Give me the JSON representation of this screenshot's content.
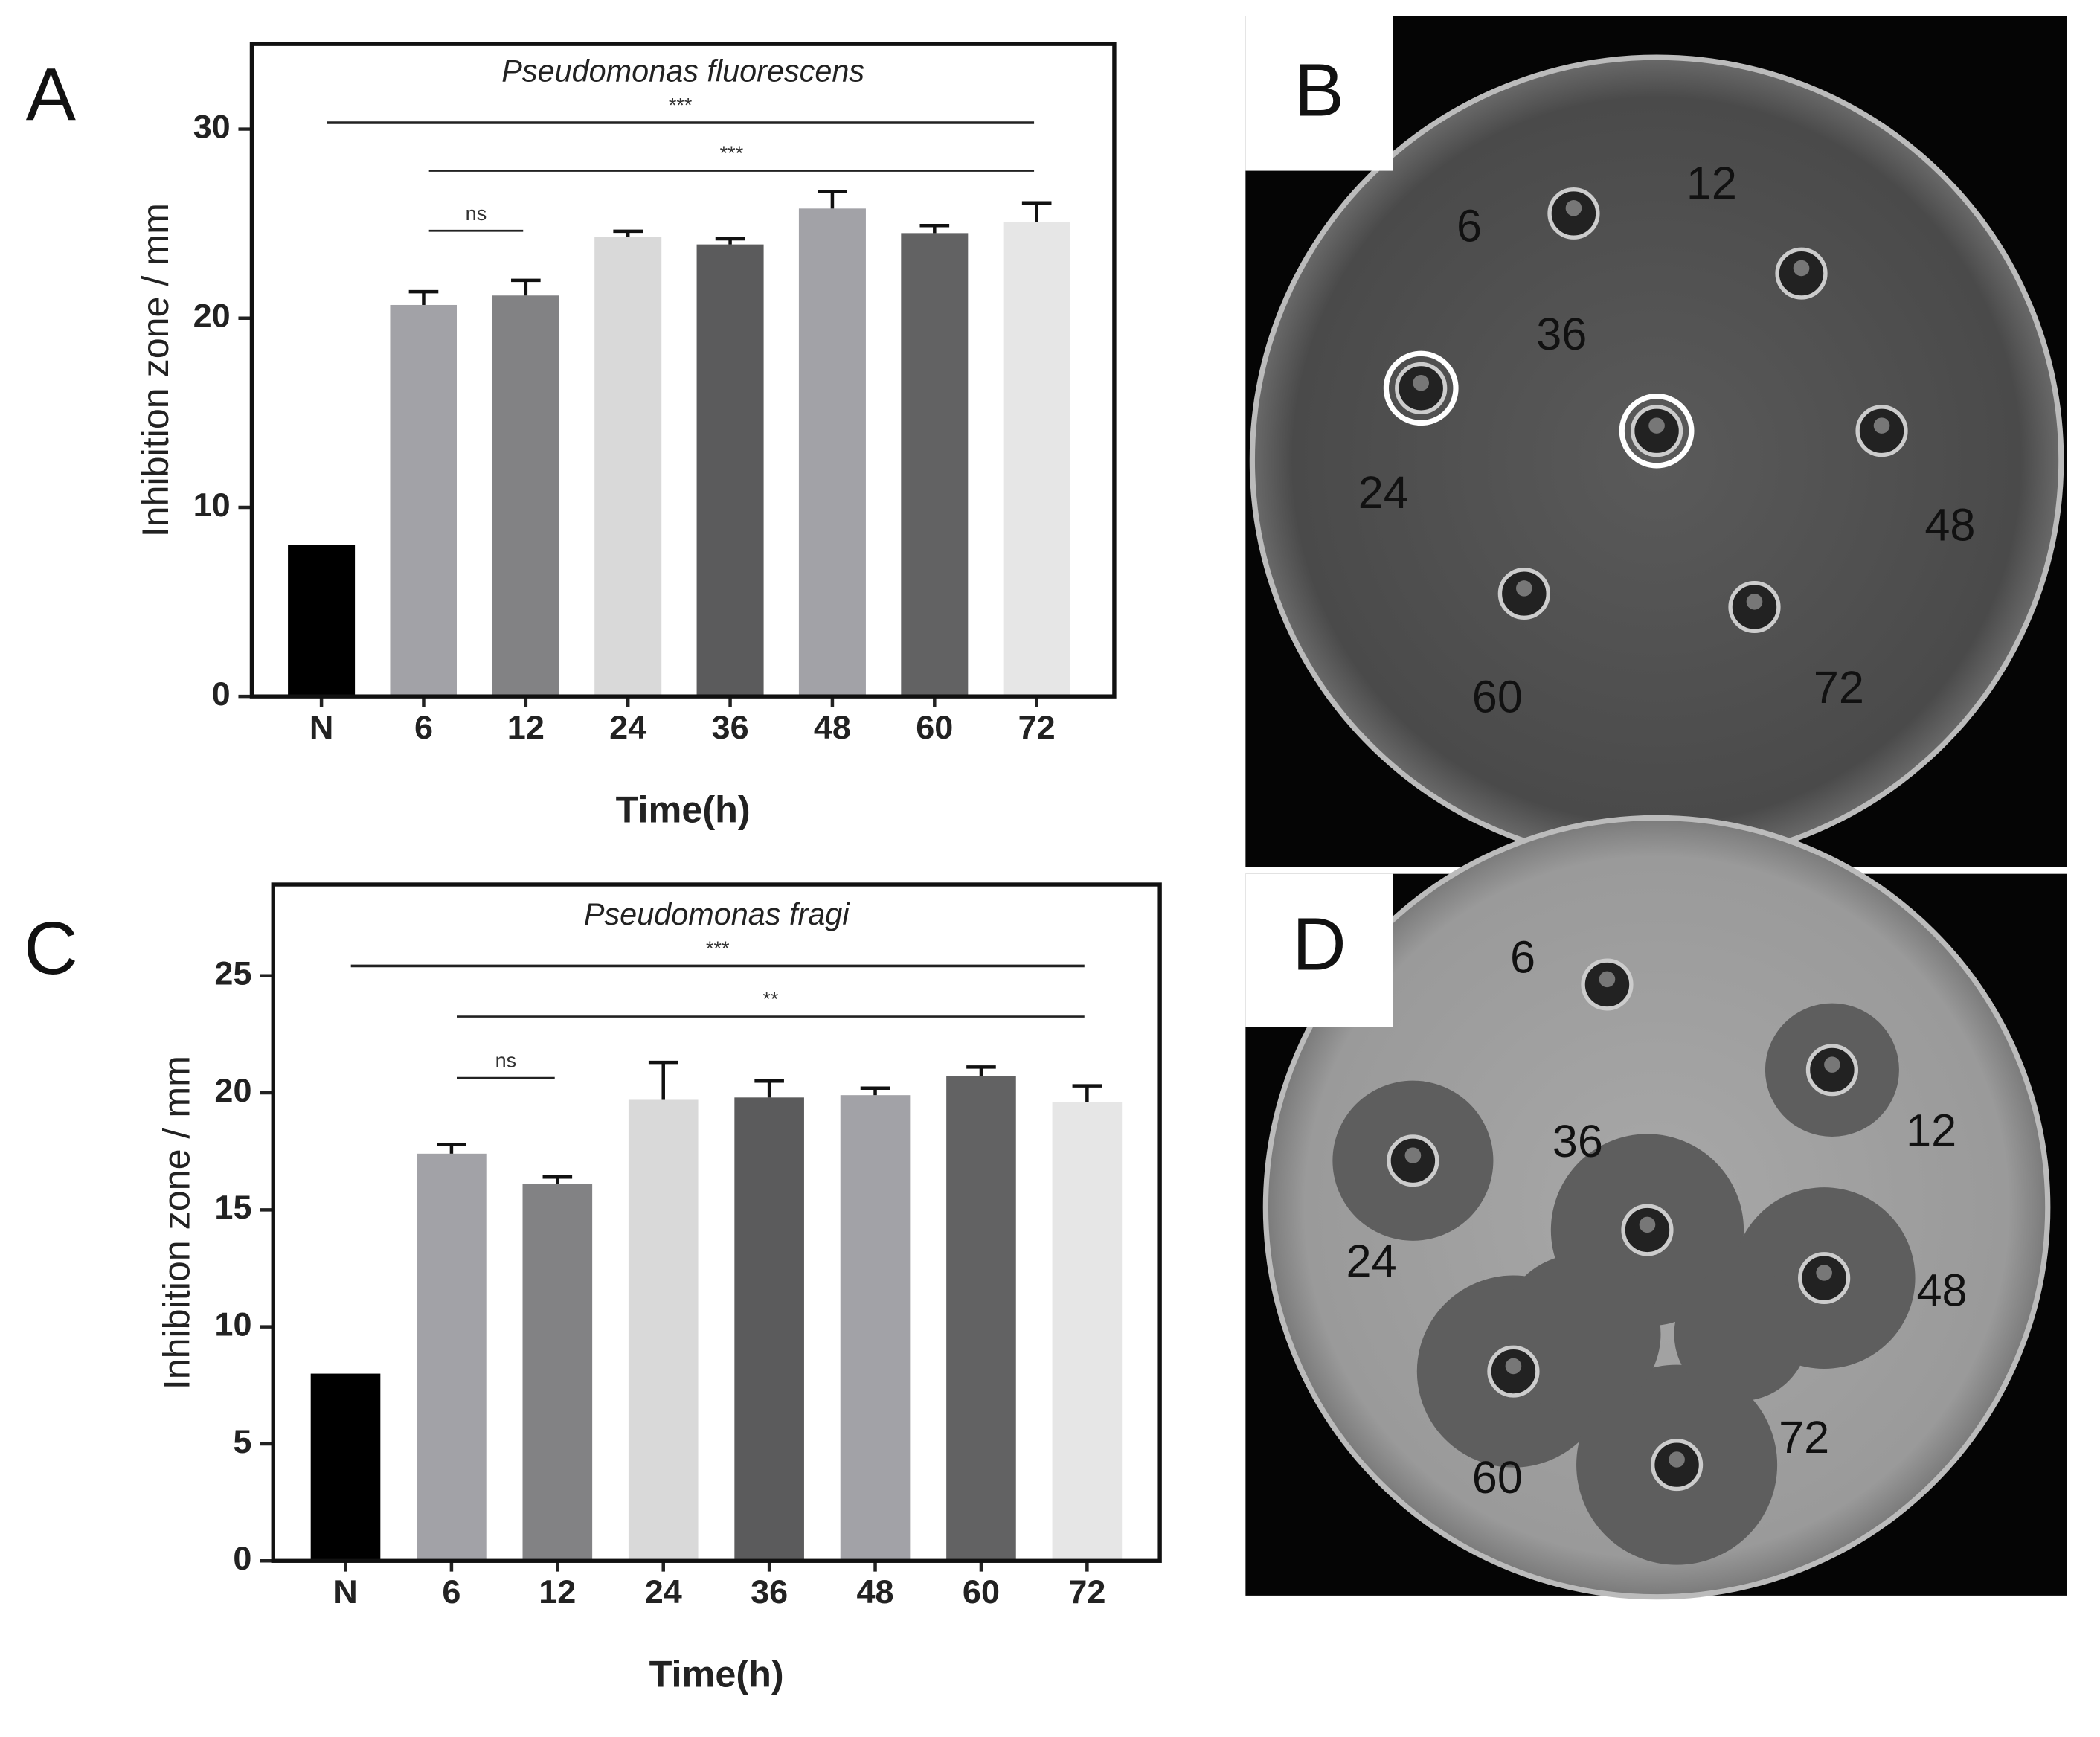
{
  "chart_data": [
    {
      "type": "bar",
      "panel": "A",
      "title": "Pseudomonas fluorescens",
      "x_label": "Time(h)",
      "y_label": "Inhibition zone / mm",
      "categories": [
        "N",
        "6",
        "12",
        "24",
        "36",
        "48",
        "60",
        "72"
      ],
      "values": [
        8,
        20.7,
        21.2,
        24.3,
        23.9,
        25.8,
        24.5,
        25.1
      ],
      "errors": [
        0,
        0.7,
        0.8,
        0.3,
        0.3,
        0.9,
        0.4,
        1.0
      ],
      "colors": [
        "#000000",
        "#a2a2a7",
        "#828284",
        "#d9d9d9",
        "#5b5b5c",
        "#a2a2a7",
        "#626263",
        "#e6e6e6"
      ],
      "ylim": [
        0,
        34.5
      ],
      "yticks": [
        0,
        10,
        20,
        30
      ],
      "annotations": [
        {
          "text": "***",
          "from": "N",
          "to": "72"
        },
        {
          "text": "***",
          "from": "6",
          "to": "72"
        },
        {
          "text": "ns",
          "from": "6",
          "to": "12"
        }
      ]
    },
    {
      "type": "bar",
      "panel": "C",
      "title": "Pseudomonas fragi",
      "x_label": "Time(h)",
      "y_label": "Inhibition zone / mm",
      "categories": [
        "N",
        "6",
        "12",
        "24",
        "36",
        "48",
        "60",
        "72"
      ],
      "values": [
        8,
        17.4,
        16.1,
        19.7,
        19.8,
        19.9,
        20.7,
        19.6
      ],
      "errors": [
        0,
        0.4,
        0.3,
        1.6,
        0.7,
        0.3,
        0.4,
        0.7
      ],
      "colors": [
        "#000000",
        "#a2a2a7",
        "#828284",
        "#d9d9d9",
        "#5b5b5c",
        "#a2a2a7",
        "#626263",
        "#e6e6e6"
      ],
      "ylim": [
        0,
        28.9
      ],
      "yticks": [
        0,
        5,
        10,
        15,
        20,
        25
      ],
      "annotations": [
        {
          "text": "***",
          "from": "N",
          "to": "72"
        },
        {
          "text": "**",
          "from": "6",
          "to": "72"
        },
        {
          "text": "ns",
          "from": "6",
          "to": "12"
        }
      ]
    }
  ],
  "photos": [
    {
      "panel": "B",
      "labels": [
        "6",
        "12",
        "36",
        "24",
        "48",
        "60",
        "72"
      ]
    },
    {
      "panel": "D",
      "labels": [
        "6",
        "12",
        "36",
        "24",
        "48",
        "60",
        "72"
      ]
    }
  ]
}
